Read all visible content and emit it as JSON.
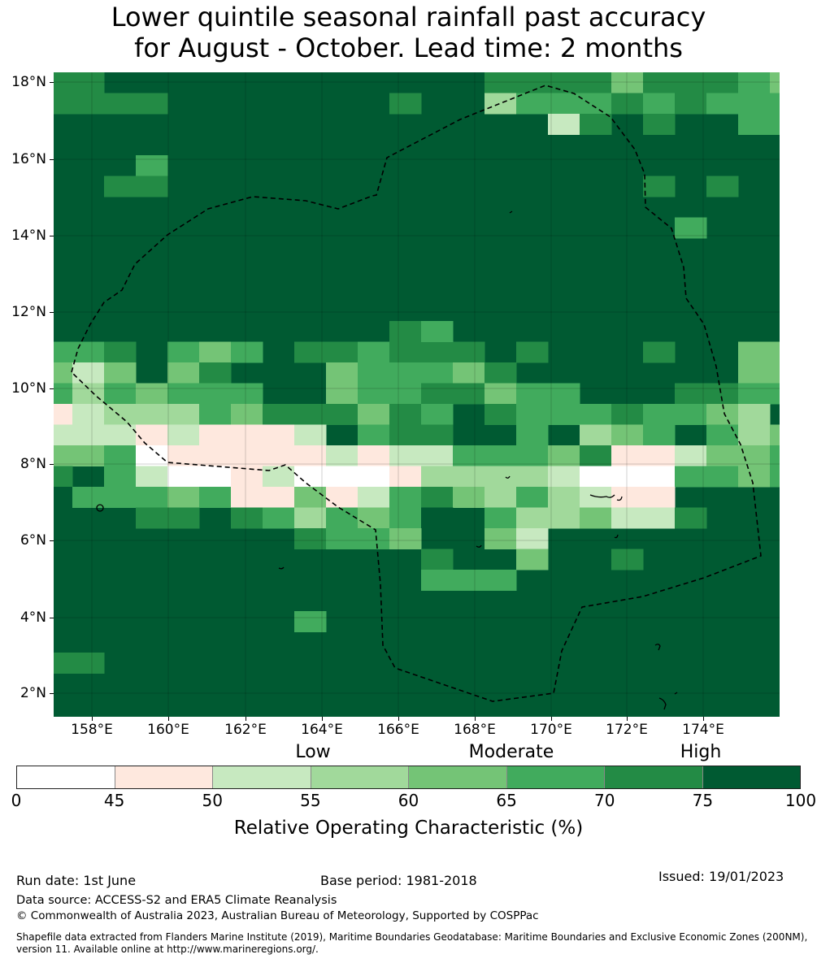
{
  "title": {
    "line1": "Lower quintile seasonal rainfall past accuracy",
    "line2": "for August - October. Lead time: 2 months"
  },
  "map": {
    "latitude_labels": [
      "18°N",
      "16°N",
      "14°N",
      "12°N",
      "10°N",
      "8°N",
      "6°N",
      "4°N",
      "2°N"
    ],
    "longitude_labels": [
      "158°E",
      "160°E",
      "162°E",
      "164°E",
      "166°E",
      "168°E",
      "170°E",
      "172°E",
      "174°E"
    ],
    "eez_boundary_style": "dashed black line",
    "skill_grid_note": "Relative Operating Characteristic values; predominantly 75-100 with lower skill band between roughly 6°N and 11°N"
  },
  "legend": {
    "categories": [
      "Low",
      "Moderate",
      "High"
    ],
    "ticks": [
      "0",
      "45",
      "50",
      "55",
      "60",
      "65",
      "70",
      "75",
      "100"
    ],
    "colors": [
      "#ffffff",
      "#fee8de",
      "#c7e9c0",
      "#a1d99b",
      "#74c476",
      "#41ab5d",
      "#238b45",
      "#005a32"
    ],
    "label": "Relative Operating Characteristic (%)"
  },
  "footer": {
    "run_date": "Run date: 1st June",
    "base_period": "Base period: 1981-2018",
    "issued": "Issued: 19/01/2023",
    "data_source": "Data source: ACCESS-S2 and ERA5 Climate Reanalysis",
    "copyright": "© Commonwealth of Australia 2023, Australian Bureau of Meteorology, Supported by COSPPac",
    "shapefile_line1": "Shapefile data extracted from Flanders Marine Institute (2019), Maritime Boundaries Geodatabase: Maritime Boundaries and Exclusive Economic Zones (200NM),",
    "shapefile_line2": "version 11. Available online at http://www.marineregions.org/."
  }
}
